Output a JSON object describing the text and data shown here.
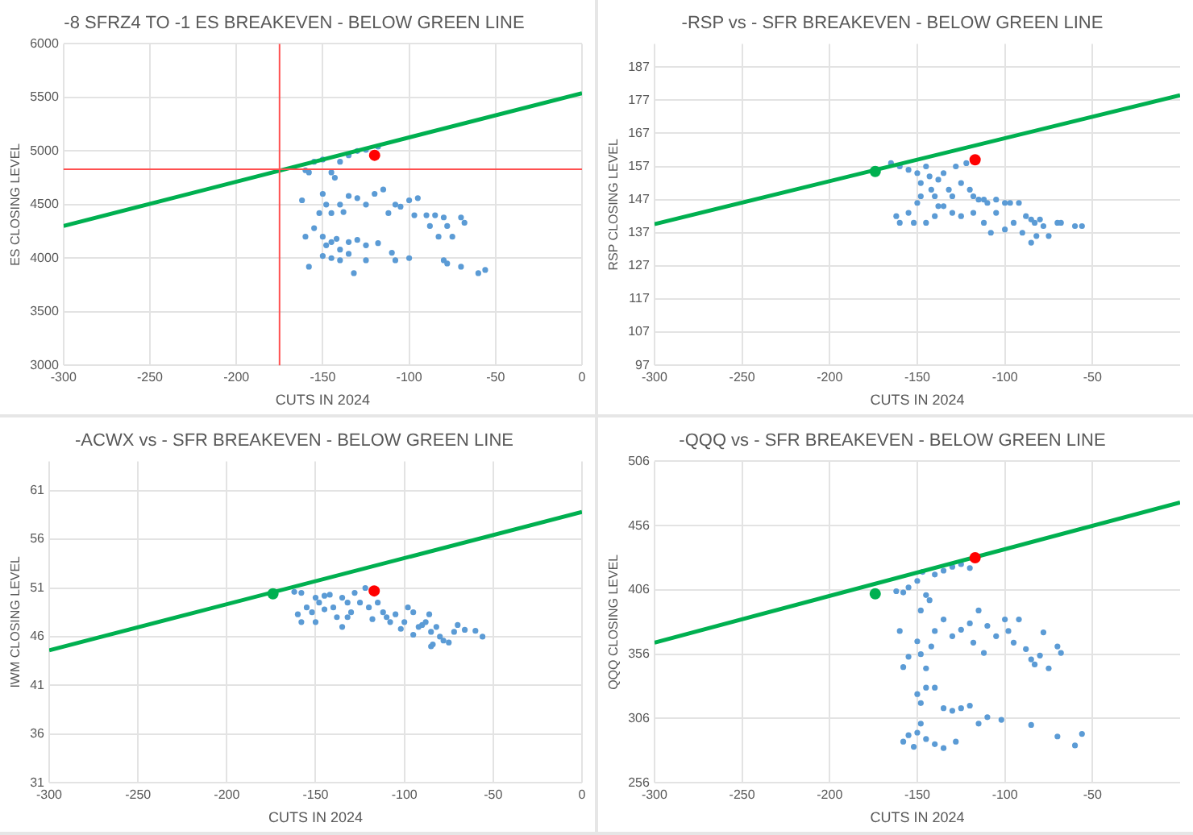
{
  "chart_data": [
    {
      "type": "scatter",
      "title": "-8 SFRZ4 TO -1 ES BREAKEVEN - BELOW GREEN LINE",
      "xlabel": "CUTS IN 2024",
      "ylabel": "ES CLOSING LEVEL",
      "xlim": [
        -300,
        0
      ],
      "xticks": [
        -300,
        -250,
        -200,
        -150,
        -100,
        -50,
        0
      ],
      "ylim": [
        3000,
        6000
      ],
      "yticks": [
        3000,
        3500,
        4000,
        4500,
        5000,
        5500,
        6000
      ],
      "grid": true,
      "marker": "circle",
      "ref_lines": [
        {
          "axis": "x",
          "value": -175,
          "color": "#ff5050"
        },
        {
          "axis": "y",
          "value": 4830,
          "color": "#ff5050"
        }
      ],
      "series": [
        {
          "type": "scatter",
          "color": "#5b9bd5",
          "x": [
            -160,
            -158,
            -155,
            -150,
            -145,
            -143,
            -140,
            -135,
            -130,
            -125,
            -118,
            -162,
            -150,
            -148,
            -145,
            -140,
            -135,
            -130,
            -125,
            -120,
            -115,
            -112,
            -108,
            -105,
            -100,
            -97,
            -95,
            -90,
            -88,
            -85,
            -83,
            -80,
            -78,
            -75,
            -70,
            -68,
            -160,
            -155,
            -150,
            -148,
            -145,
            -142,
            -140,
            -135,
            -130,
            -125,
            -150,
            -145,
            -140,
            -135,
            -132,
            -158,
            -125,
            -118,
            -110,
            -108,
            -100,
            -80,
            -78,
            -70,
            -60,
            -56,
            -152,
            -138
          ],
          "values": [
            4820,
            4800,
            4900,
            4920,
            4800,
            4750,
            4900,
            4960,
            5000,
            5010,
            5040,
            4540,
            4600,
            4500,
            4420,
            4500,
            4580,
            4560,
            4500,
            4600,
            4640,
            4420,
            4500,
            4480,
            4540,
            4400,
            4560,
            4400,
            4300,
            4400,
            4200,
            4380,
            4300,
            4200,
            4380,
            4330,
            4200,
            4280,
            4200,
            4120,
            4150,
            4180,
            4080,
            4150,
            4170,
            4120,
            4020,
            4000,
            3980,
            4040,
            3860,
            3920,
            3980,
            4140,
            4050,
            3980,
            4000,
            3980,
            3950,
            3920,
            3860,
            3890,
            4420,
            4430
          ]
        },
        {
          "type": "line",
          "color": "#00b050",
          "marker": "none",
          "x": [
            -300,
            0
          ],
          "values": [
            4300,
            5540
          ]
        },
        {
          "type": "scatter",
          "color": "#ff0000",
          "x": [
            -120
          ],
          "values": [
            4960
          ]
        }
      ]
    },
    {
      "type": "scatter",
      "title": "-RSP vs - SFR BREAKEVEN - BELOW GREEN LINE",
      "xlabel": "CUTS IN 2024",
      "ylabel": "RSP CLOSING LEVEL",
      "xlim": [
        -300,
        0
      ],
      "xticks": [
        -300,
        -250,
        -200,
        -150,
        -100,
        -50
      ],
      "ylim": [
        97,
        194
      ],
      "yticks": [
        97,
        107,
        117,
        127,
        137,
        147,
        157,
        167,
        177,
        187
      ],
      "grid": true,
      "marker": "circle",
      "series": [
        {
          "type": "scatter",
          "color": "#5b9bd5",
          "x": [
            -165,
            -160,
            -155,
            -150,
            -148,
            -145,
            -142,
            -140,
            -138,
            -135,
            -132,
            -128,
            -125,
            -122,
            -120,
            -118,
            -115,
            -112,
            -110,
            -105,
            -100,
            -97,
            -92,
            -88,
            -85,
            -83,
            -80,
            -78,
            -75,
            -70,
            -68,
            -60,
            -56,
            -85,
            -82,
            -90,
            -100,
            -108,
            -112,
            -118,
            -125,
            -130,
            -135,
            -140,
            -145,
            -150,
            -152,
            -160,
            -162,
            -155,
            -148,
            -143,
            -130,
            -138,
            -95,
            -105
          ],
          "values": [
            158,
            157,
            156,
            155,
            152,
            157,
            150,
            148,
            153,
            155,
            150,
            157,
            152,
            158,
            150,
            148,
            147,
            147,
            146,
            147,
            146,
            146,
            146,
            142,
            141,
            140,
            141,
            139,
            136,
            140,
            140,
            139,
            139,
            134,
            136,
            137,
            138,
            137,
            140,
            143,
            142,
            143,
            145,
            142,
            140,
            146,
            140,
            140,
            142,
            143,
            148,
            154,
            148,
            145,
            140,
            143
          ]
        },
        {
          "type": "line",
          "color": "#00b050",
          "marker": "none",
          "x": [
            -300,
            0
          ],
          "values": [
            139.6,
            178.5
          ]
        },
        {
          "type": "scatter",
          "color": "#ff0000",
          "x": [
            -117
          ],
          "values": [
            159
          ]
        },
        {
          "type": "scatter",
          "color": "#00b050",
          "x": [
            -174
          ],
          "values": [
            155.5
          ]
        }
      ]
    },
    {
      "type": "scatter",
      "title": "-ACWX vs - SFR BREAKEVEN - BELOW GREEN LINE",
      "xlabel": "CUTS IN 2024",
      "ylabel": "IWM CLOSING LEVEL",
      "xlim": [
        -300,
        0
      ],
      "xticks": [
        -300,
        -250,
        -200,
        -150,
        -100,
        -50,
        0
      ],
      "ylim": [
        31,
        64
      ],
      "yticks": [
        31,
        36,
        41,
        46,
        51,
        56,
        61
      ],
      "grid": true,
      "marker": "circle",
      "series": [
        {
          "type": "scatter",
          "color": "#5b9bd5",
          "x": [
            -162,
            -158,
            -155,
            -152,
            -150,
            -148,
            -145,
            -142,
            -140,
            -138,
            -135,
            -132,
            -130,
            -128,
            -125,
            -122,
            -120,
            -115,
            -112,
            -110,
            -108,
            -105,
            -100,
            -98,
            -95,
            -92,
            -90,
            -88,
            -86,
            -85,
            -84,
            -82,
            -80,
            -78,
            -75,
            -72,
            -70,
            -66,
            -60,
            -56,
            -158,
            -160,
            -150,
            -135,
            -118,
            -102,
            -95,
            -85,
            -145,
            -132
          ],
          "values": [
            50.6,
            50.5,
            49,
            48.5,
            50,
            49.5,
            48.8,
            50.3,
            49,
            48,
            50,
            49.5,
            48.5,
            50.5,
            49.5,
            51,
            49,
            49.5,
            48.5,
            48,
            47.5,
            48.3,
            47.5,
            49,
            48.5,
            47,
            47.2,
            47.5,
            48.3,
            46.5,
            45.2,
            47,
            46,
            45.6,
            45.4,
            46.5,
            47.2,
            46.7,
            46.6,
            46,
            47.5,
            48.3,
            47.5,
            47,
            47.8,
            46.8,
            46.2,
            45,
            50.2,
            48
          ]
        },
        {
          "type": "line",
          "color": "#00b050",
          "marker": "none",
          "x": [
            -300,
            0
          ],
          "values": [
            44.6,
            58.8
          ]
        },
        {
          "type": "scatter",
          "color": "#ff0000",
          "x": [
            -117
          ],
          "values": [
            50.7
          ]
        },
        {
          "type": "scatter",
          "color": "#00b050",
          "x": [
            -174
          ],
          "values": [
            50.4
          ]
        }
      ]
    },
    {
      "type": "scatter",
      "title": "-QQQ vs - SFR BREAKEVEN - BELOW GREEN LINE",
      "xlabel": "CUTS IN 2024",
      "ylabel": "QQQ CLOSING LEVEL",
      "xlim": [
        -300,
        0
      ],
      "xticks": [
        -300,
        -250,
        -200,
        -150,
        -100,
        -50
      ],
      "ylim": [
        256,
        506
      ],
      "yticks": [
        256,
        306,
        356,
        406,
        456,
        506
      ],
      "grid": true,
      "marker": "circle",
      "series": [
        {
          "type": "scatter",
          "color": "#5b9bd5",
          "x": [
            -162,
            -158,
            -155,
            -150,
            -147,
            -145,
            -143,
            -140,
            -135,
            -130,
            -125,
            -120,
            -148,
            -160,
            -155,
            -150,
            -148,
            -145,
            -142,
            -140,
            -135,
            -130,
            -125,
            -120,
            -118,
            -115,
            -112,
            -110,
            -105,
            -100,
            -98,
            -95,
            -92,
            -88,
            -85,
            -83,
            -80,
            -78,
            -75,
            -70,
            -68,
            -158,
            -150,
            -148,
            -145,
            -140,
            -135,
            -130,
            -125,
            -120,
            -115,
            -110,
            -102,
            -85,
            -150,
            -148,
            -145,
            -140,
            -135,
            -158,
            -152,
            -155,
            -128,
            -70,
            -60,
            -56
          ],
          "values": [
            405,
            404,
            408,
            413,
            420,
            402,
            398,
            418,
            421,
            424,
            426,
            423,
            390,
            374,
            354,
            366,
            356,
            345,
            362,
            374,
            383,
            370,
            375,
            380,
            365,
            390,
            357,
            378,
            370,
            383,
            374,
            365,
            383,
            360,
            352,
            348,
            355,
            373,
            345,
            362,
            357,
            346,
            325,
            318,
            330,
            330,
            314,
            312,
            314,
            316,
            302,
            307,
            305,
            301,
            295,
            302,
            290,
            286,
            283,
            288,
            284,
            293,
            288,
            292,
            285,
            294
          ]
        },
        {
          "type": "line",
          "color": "#00b050",
          "marker": "none",
          "x": [
            -300,
            0
          ],
          "values": [
            365,
            474
          ]
        },
        {
          "type": "scatter",
          "color": "#ff0000",
          "x": [
            -117
          ],
          "values": [
            431
          ]
        },
        {
          "type": "scatter",
          "color": "#00b050",
          "x": [
            -174
          ],
          "values": [
            403
          ]
        }
      ]
    }
  ]
}
